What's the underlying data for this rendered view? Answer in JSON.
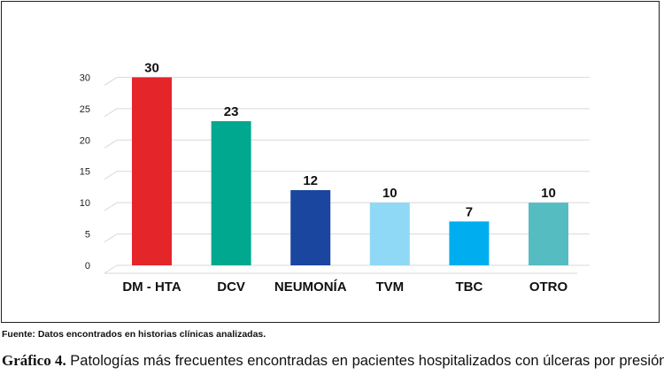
{
  "chart_data": {
    "type": "bar",
    "categories": [
      "DM - HTA",
      "DCV",
      "NEUMONÍA",
      "TVM",
      "TBC",
      "OTRO"
    ],
    "values": [
      30,
      23,
      12,
      10,
      7,
      10
    ],
    "value_labels": [
      "30",
      "23",
      "12",
      "10",
      "7",
      "10"
    ],
    "bar_colors": [
      "#e4262a",
      "#00a88f",
      "#1a46a0",
      "#8fd9f6",
      "#00aeef",
      "#55bcc2"
    ],
    "yticks": [
      0,
      5,
      10,
      15,
      20,
      25,
      30
    ],
    "ylim": [
      0,
      35
    ],
    "grid": true,
    "title": "",
    "xlabel": "",
    "ylabel": ""
  },
  "source_note": "Fuente: Datos encontrados en historias clínicas analizadas.",
  "caption": {
    "label": "Gráfico 4.",
    "text": " Patologías más frecuentes encontradas en pacientes hospitalizados con úlceras por presión."
  }
}
